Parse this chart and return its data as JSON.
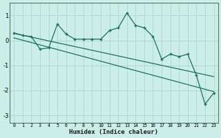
{
  "xlabel": "Humidex (Indice chaleur)",
  "bg_color": "#cceee8",
  "grid_color": "#aaddcc",
  "line_color": "#1a6e5e",
  "x_data": [
    0,
    1,
    2,
    3,
    4,
    5,
    6,
    7,
    8,
    9,
    10,
    11,
    12,
    13,
    14,
    15,
    16,
    17,
    18,
    19,
    20,
    21,
    22,
    23
  ],
  "y_data": [
    0.3,
    0.2,
    0.15,
    -0.35,
    -0.3,
    0.65,
    0.25,
    0.05,
    0.05,
    0.05,
    0.05,
    0.4,
    0.5,
    1.1,
    0.6,
    0.5,
    0.15,
    -0.75,
    -0.55,
    -0.65,
    -0.55,
    -1.4,
    -2.55,
    -2.1
  ],
  "trend1_x": [
    0,
    23
  ],
  "trend1_y": [
    0.28,
    -1.45
  ],
  "trend2_x": [
    0,
    23
  ],
  "trend2_y": [
    0.1,
    -2.05
  ],
  "xlim": [
    -0.5,
    23.5
  ],
  "ylim": [
    -3.3,
    1.5
  ],
  "yticks": [
    -3,
    -2,
    -1,
    0,
    1
  ],
  "xtick_labels": [
    "0",
    "1",
    "2",
    "3",
    "4",
    "5",
    "6",
    "7",
    "8",
    "9",
    "10",
    "11",
    "12",
    "13",
    "14",
    "15",
    "16",
    "17",
    "18",
    "19",
    "20",
    "21",
    "22",
    "23"
  ]
}
